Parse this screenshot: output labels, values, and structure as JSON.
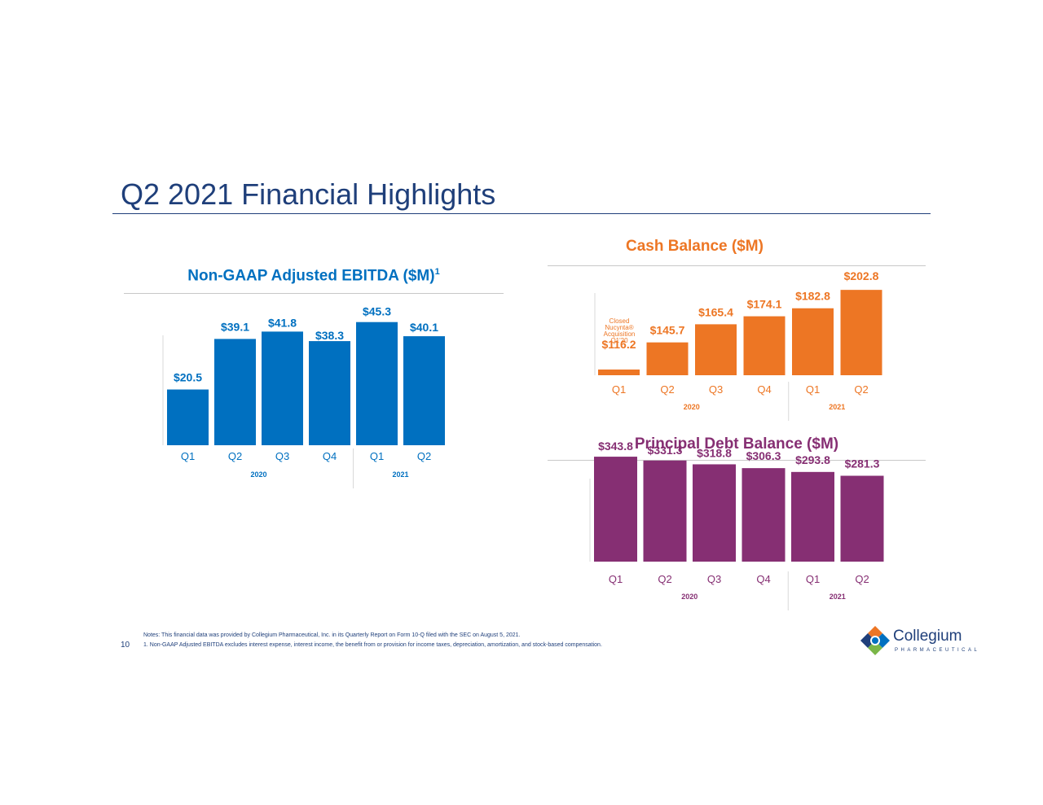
{
  "page": {
    "title": "Q2 2021 Financial Highlights",
    "page_number": "10",
    "notes_line1": "Notes: This financial data was provided by Collegium Pharmaceutical, Inc. in its Quarterly Report on Form 10-Q filed with the SEC on August 5, 2021.",
    "notes_line2": "1.   Non-GAAP Adjusted EBITDA excludes interest expense, interest income, the benefit from or provision for income taxes, depreciation, amortization, and stock-based compensation.",
    "logo_word": "Collegium",
    "logo_sub": "PHARMACEUTICAL"
  },
  "colors": {
    "ebitda": "#0070c0",
    "cash": "#ed7624",
    "debt": "#862f73",
    "title": "#1f3f7a"
  },
  "chart_data": [
    {
      "type": "bar",
      "title": "Non-GAAP Adjusted EBITDA ($M)",
      "title_footnote": "1",
      "categories": [
        "Q1",
        "Q2",
        "Q3",
        "Q4",
        "Q1",
        "Q2"
      ],
      "groups": [
        "2020",
        "2021"
      ],
      "group_sizes": [
        4,
        2
      ],
      "values": [
        20.5,
        39.1,
        41.8,
        38.3,
        45.3,
        40.1
      ],
      "value_labels": [
        "$20.5",
        "$39.1",
        "$41.8",
        "$38.3",
        "$45.3",
        "$40.1"
      ],
      "ylim": [
        0,
        50
      ],
      "color": "#0070c0"
    },
    {
      "type": "bar",
      "title": "Cash Balance ($M)",
      "categories": [
        "Q1",
        "Q2",
        "Q3",
        "Q4",
        "Q1",
        "Q2"
      ],
      "groups": [
        "2020",
        "2021"
      ],
      "group_sizes": [
        4,
        2
      ],
      "values": [
        116.2,
        145.7,
        165.4,
        174.1,
        182.8,
        202.8
      ],
      "value_labels": [
        "$116.2",
        "$145.7",
        "$165.4",
        "$174.1",
        "$182.8",
        "$202.8"
      ],
      "ylim": [
        110,
        210
      ],
      "annotation": [
        "Closed",
        "Nucynta®",
        "Acquisition",
        "Q1'20"
      ],
      "color": "#ed7624"
    },
    {
      "type": "bar",
      "title": "Principal Debt Balance ($M)",
      "categories": [
        "Q1",
        "Q2",
        "Q3",
        "Q4",
        "Q1",
        "Q2"
      ],
      "groups": [
        "2020",
        "2021"
      ],
      "group_sizes": [
        4,
        2
      ],
      "values": [
        343.8,
        331.3,
        318.8,
        306.3,
        293.8,
        281.3
      ],
      "value_labels": [
        "$343.8",
        "$331.3",
        "$318.8",
        "$306.3",
        "$293.8",
        "$281.3"
      ],
      "ylim": [
        0,
        400
      ],
      "color": "#862f73"
    }
  ]
}
